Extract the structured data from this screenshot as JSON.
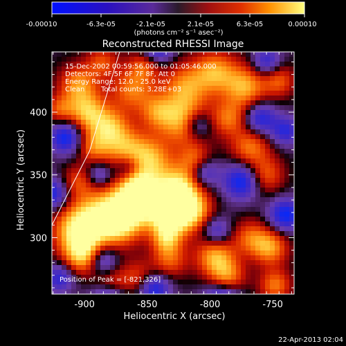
{
  "colorbar": {
    "tick_labels": [
      "-0.00010",
      "-6.3e-05",
      "-2.1e-05",
      "2.1e-05",
      "6.3e-05",
      "0.00010"
    ],
    "unit_label": "(photons cm⁻² s⁻¹ asec⁻²)",
    "range": [
      -0.0001,
      0.0001
    ]
  },
  "chart_data": {
    "type": "heatmap",
    "title": "Reconstructed RHESSI Image",
    "xlabel": "Heliocentric X (arcsec)",
    "ylabel": "Heliocentric Y (arcsec)",
    "xlim": [
      -926,
      -733
    ],
    "ylim": [
      255,
      448
    ],
    "xticks": [
      -900,
      -850,
      -800,
      -750
    ],
    "yticks": [
      300,
      350,
      400
    ],
    "annotations": [
      "15-Dec-2002 00:59:56.000 to 01:05:46.000",
      "Detectors: 4F 5F 6F 7F 8F, Att 0",
      "Energy Range: 12.0 - 25.0 keV",
      "Clean",
      "Total counts: 3.28E+03"
    ],
    "peak_label": "Position of Peak = [-821,326]",
    "peak_position": [
      -821,
      326
    ],
    "limb_line": [
      [
        -926,
        310
      ],
      [
        -896,
        369
      ],
      [
        -872,
        448
      ]
    ]
  },
  "footer": {
    "timestamp": "22-Apr-2013 02:04"
  }
}
